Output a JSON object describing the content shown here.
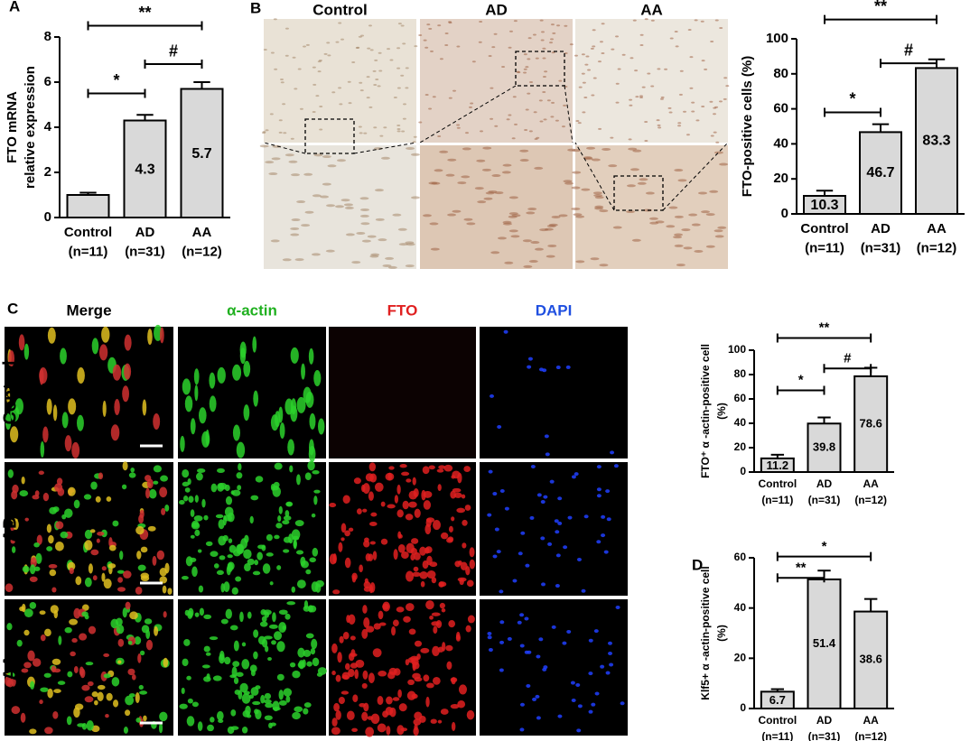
{
  "chart_data": [
    {
      "type": "bar",
      "panel": "A",
      "ylabel": [
        "FTO mRNA",
        "relative expression"
      ],
      "categories": [
        "Control",
        "AD",
        "AA"
      ],
      "category_notes": [
        "(n=11)",
        "(n=31)",
        "(n=12)"
      ],
      "values": [
        1.0,
        4.3,
        5.7
      ],
      "value_labels": [
        null,
        "4.3",
        "5.7"
      ],
      "errors": [
        0.1,
        0.25,
        0.3
      ],
      "ylim": [
        0,
        8
      ],
      "yticks": [
        0,
        2,
        4,
        6,
        8
      ],
      "color": "#d9d9d9",
      "brackets": [
        {
          "label": "*",
          "from": 0,
          "to": 1,
          "y": 5.5
        },
        {
          "label": "#",
          "from": 1,
          "to": 2,
          "y": 6.8
        },
        {
          "label": "**",
          "from": 0,
          "to": 2,
          "y": 8.5
        }
      ]
    },
    {
      "type": "bar",
      "panel": "B",
      "ylabel": [
        "FTO-positive cells (%)"
      ],
      "categories": [
        "Control",
        "AD",
        "AA"
      ],
      "category_notes": [
        "(n=11)",
        "(n=31)",
        "(n=12)"
      ],
      "values": [
        10.3,
        46.7,
        83.3
      ],
      "errors": [
        3,
        4.5,
        5
      ],
      "ylim": [
        0,
        100
      ],
      "yticks": [
        0,
        20,
        40,
        60,
        80,
        100
      ],
      "color": "#d9d9d9",
      "brackets": [
        {
          "label": "*",
          "from": 0,
          "to": 1,
          "y": 58
        },
        {
          "label": "#",
          "from": 1,
          "to": 2,
          "y": 86
        },
        {
          "label": "**",
          "from": 0,
          "to": 2,
          "y": 111
        }
      ]
    },
    {
      "type": "bar",
      "panel": "C",
      "ylabel": [
        "FTO⁺ α -actin-positive cell",
        "(%)"
      ],
      "categories": [
        "Control",
        "AD",
        "AA"
      ],
      "category_notes": [
        "(n=11)",
        "(n=31)",
        "(n=12)"
      ],
      "values": [
        11.2,
        39.8,
        78.6
      ],
      "errors": [
        3,
        5,
        7
      ],
      "ylim": [
        0,
        100
      ],
      "yticks": [
        0,
        20,
        40,
        60,
        80,
        100
      ],
      "color": "#d9d9d9",
      "brackets": [
        {
          "label": "*",
          "from": 0,
          "to": 1,
          "y": 67
        },
        {
          "label": "#",
          "from": 1,
          "to": 2,
          "y": 85
        },
        {
          "label": "**",
          "from": 0,
          "to": 2,
          "y": 110
        }
      ]
    },
    {
      "type": "bar",
      "panel": "D",
      "ylabel": [
        "Klf5+ α -actin-positive cell",
        "(%)"
      ],
      "categories": [
        "Control",
        "AD",
        "AA"
      ],
      "category_notes": [
        "(n=11)",
        "(n=31)",
        "(n=12)"
      ],
      "values": [
        6.7,
        51.4,
        38.6
      ],
      "errors": [
        1,
        3.5,
        5
      ],
      "ylim": [
        0,
        60
      ],
      "yticks": [
        0,
        20,
        40,
        60
      ],
      "color": "#d9d9d9",
      "brackets": [
        {
          "label": "**",
          "from": 0,
          "to": 1,
          "y": 52
        },
        {
          "label": "*",
          "from": 0,
          "to": 2,
          "y": 60.5
        }
      ]
    }
  ],
  "images": {
    "B": {
      "columns": [
        "Control",
        "AD",
        "AA"
      ]
    },
    "C": {
      "columns": [
        "Merge",
        "α-actin",
        "FTO",
        "DAPI"
      ],
      "rows": [
        "Control",
        "AD",
        "AA"
      ]
    }
  }
}
